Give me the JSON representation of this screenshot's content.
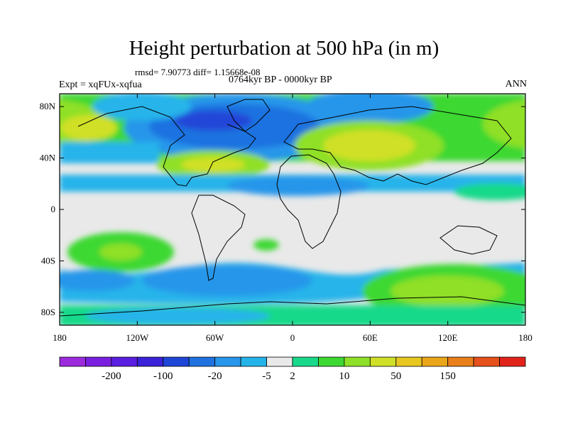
{
  "title": "Height perturbation at 500 hPa (in m)",
  "stats": "rmsd= 7.90773 diff= 1.15668e-08",
  "period": "0764kyr BP - 0000kyr BP",
  "experiment": "Expt = xqFUx-xqfua",
  "season": "ANN",
  "lat_ticks": [
    {
      "value": 80,
      "label": "80N"
    },
    {
      "value": 40,
      "label": "40N"
    },
    {
      "value": 0,
      "label": "0"
    },
    {
      "value": -40,
      "label": "40S"
    },
    {
      "value": -80,
      "label": "80S"
    }
  ],
  "lon_ticks": [
    {
      "value": -180,
      "label": "180"
    },
    {
      "value": -120,
      "label": "120W"
    },
    {
      "value": -60,
      "label": "60W"
    },
    {
      "value": 0,
      "label": "0"
    },
    {
      "value": 60,
      "label": "60E"
    },
    {
      "value": 120,
      "label": "120E"
    },
    {
      "value": 180,
      "label": "180"
    }
  ],
  "colorbar": {
    "colors": [
      "#9b2bdc",
      "#7a1fe0",
      "#5a1ee0",
      "#3a22d8",
      "#2046d8",
      "#1f72e0",
      "#2896ea",
      "#25b4ea",
      "#e9e9e9",
      "#18d98a",
      "#3ed832",
      "#8fe028",
      "#d0e028",
      "#e8c820",
      "#eaa618",
      "#e97f1a",
      "#e6501a",
      "#e2231a"
    ],
    "labels": [
      {
        "text": "-200",
        "boundary": 2
      },
      {
        "text": "-100",
        "boundary": 4
      },
      {
        "text": "-20",
        "boundary": 6
      },
      {
        "text": "-5",
        "boundary": 8
      },
      {
        "text": "2",
        "boundary": 9
      },
      {
        "text": "10",
        "boundary": 11
      },
      {
        "text": "50",
        "boundary": 13
      },
      {
        "text": "150",
        "boundary": 15
      }
    ]
  }
}
